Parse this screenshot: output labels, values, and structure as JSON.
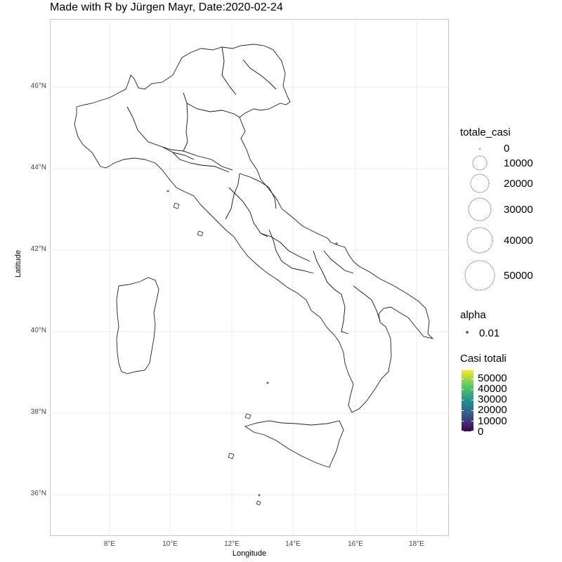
{
  "title": "Made with R by Jürgen Mayr, Date:2020-02-24",
  "axes": {
    "x_label": "Longitude",
    "y_label": "Latitude",
    "x_ticks": [
      "8°E",
      "10°E",
      "12°E",
      "14°E",
      "16°E",
      "18°E"
    ],
    "y_ticks": [
      "46°N",
      "44°N",
      "42°N",
      "40°N",
      "38°N",
      "36°N"
    ]
  },
  "legend": {
    "size": {
      "title": "totale_casi",
      "items": [
        "0",
        "10000",
        "20000",
        "30000",
        "40000",
        "50000"
      ]
    },
    "alpha": {
      "title": "alpha",
      "items": [
        "0.01"
      ]
    },
    "fill": {
      "title": "Casi totali",
      "items": [
        "50000",
        "40000",
        "30000",
        "20000",
        "10000",
        "0"
      ],
      "colors": [
        "#440154",
        "#3b528b",
        "#21908c",
        "#5dc963",
        "#fde725"
      ]
    }
  }
}
